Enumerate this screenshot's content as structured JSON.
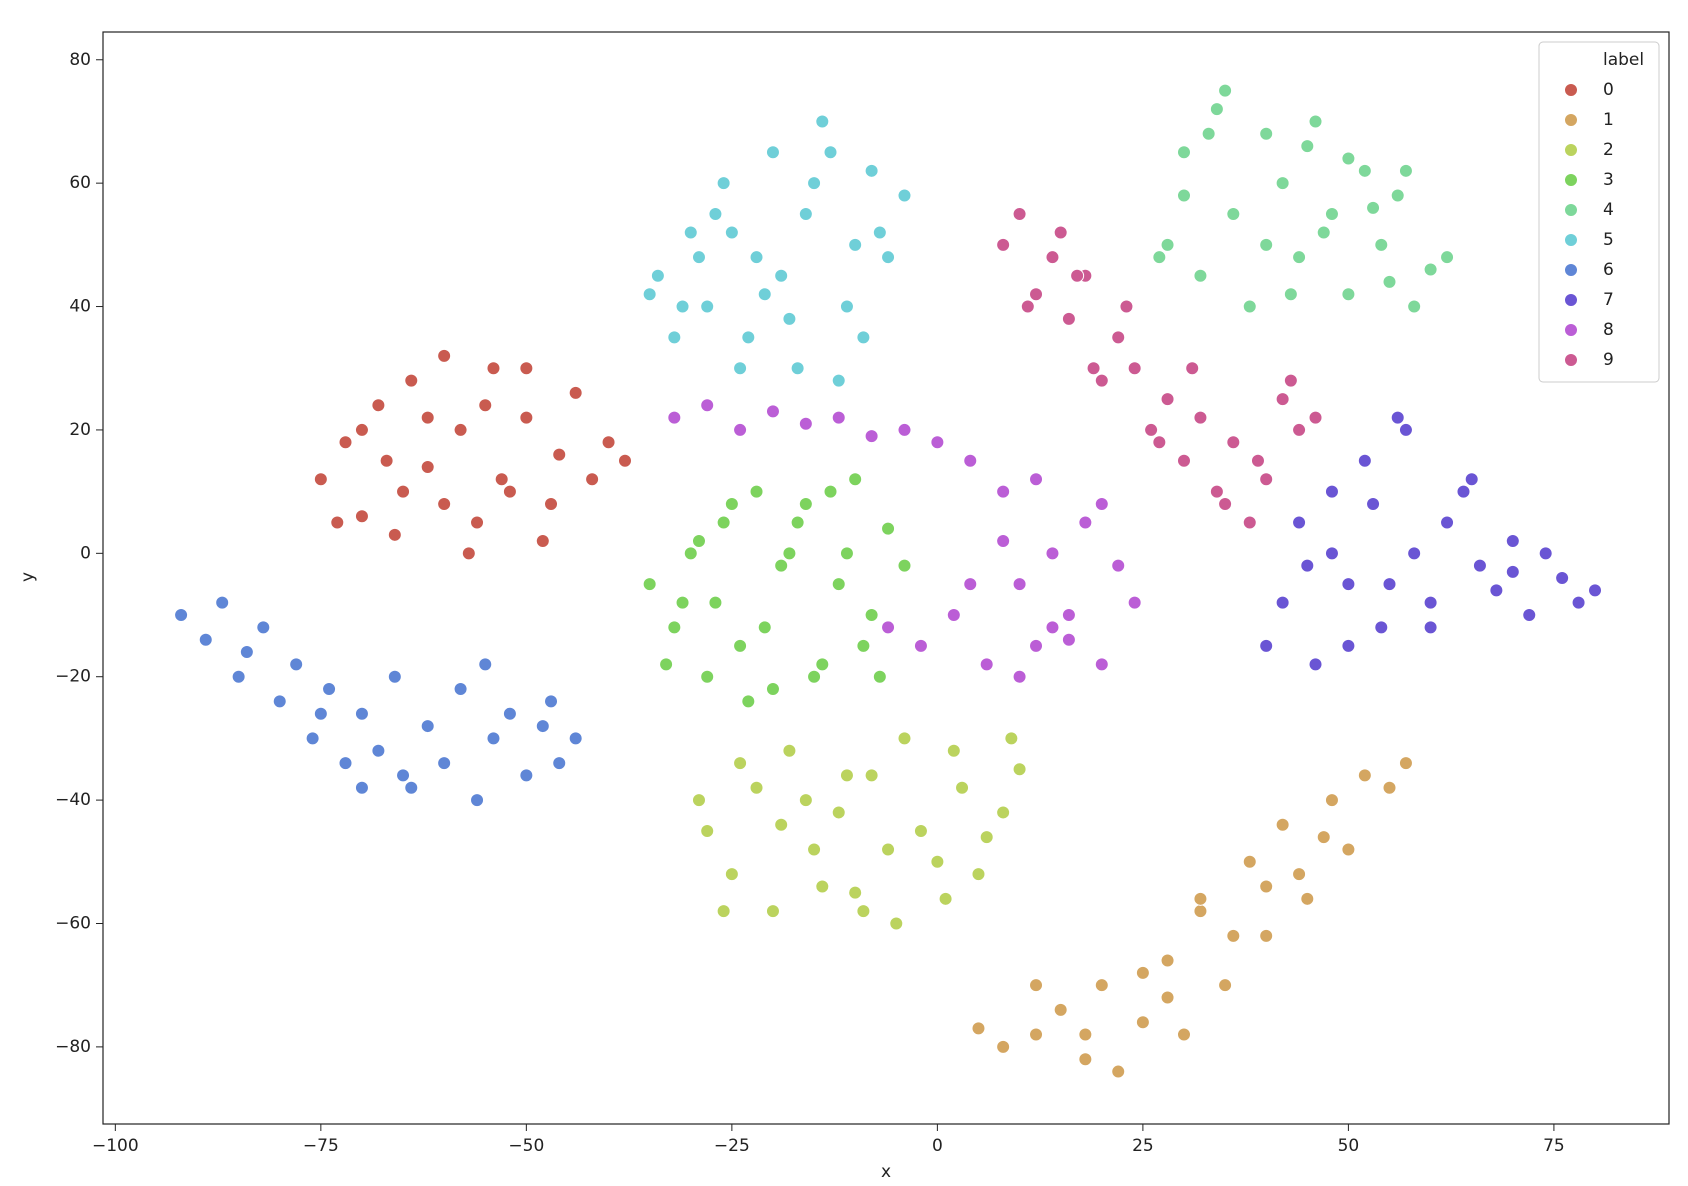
{
  "chart_data": {
    "type": "scatter",
    "xlabel": "x",
    "ylabel": "y",
    "legend_title": "label",
    "legend": "upper right",
    "grid": false,
    "xlim": [
      -101.5,
      89
    ],
    "ylim": [
      -92.5,
      84.5
    ],
    "xticks": [
      {
        "value": -100,
        "label": "−100"
      },
      {
        "value": -75,
        "label": "−75"
      },
      {
        "value": -50,
        "label": "−50"
      },
      {
        "value": -25,
        "label": "−25"
      },
      0,
      25,
      50,
      75
    ],
    "yticks": [
      {
        "value": -80,
        "label": "−80"
      },
      {
        "value": -60,
        "label": "−60"
      },
      {
        "value": -40,
        "label": "−40"
      },
      {
        "value": -20,
        "label": "−20"
      },
      0,
      20,
      40,
      60,
      80
    ],
    "series": [
      {
        "name": "0",
        "color": "#c95b50",
        "x": [
          -75,
          -72,
          -70,
          -68,
          -66,
          -64,
          -62,
          -60,
          -58,
          -56,
          -54,
          -52,
          -50,
          -48,
          -46,
          -44,
          -42,
          -40,
          -38,
          -65,
          -60,
          -55,
          -50,
          -70,
          -62,
          -57,
          -47,
          -73,
          -67,
          -53
        ],
        "values": [
          12,
          18,
          6,
          24,
          3,
          28,
          14,
          32,
          20,
          5,
          30,
          10,
          22,
          2,
          16,
          26,
          12,
          18,
          15,
          10,
          8,
          24,
          30,
          20,
          22,
          0,
          8,
          5,
          15,
          12
        ]
      },
      {
        "name": "1",
        "color": "#d4a661",
        "x": [
          5,
          8,
          12,
          15,
          18,
          20,
          22,
          25,
          28,
          30,
          32,
          35,
          38,
          40,
          42,
          45,
          48,
          50,
          52,
          55,
          57,
          18,
          25,
          32,
          40,
          47,
          28,
          36,
          44,
          12
        ],
        "values": [
          -77,
          -80,
          -78,
          -74,
          -82,
          -70,
          -84,
          -76,
          -66,
          -78,
          -58,
          -70,
          -50,
          -62,
          -44,
          -56,
          -40,
          -48,
          -36,
          -38,
          -34,
          -78,
          -68,
          -56,
          -54,
          -46,
          -72,
          -62,
          -52,
          -70
        ]
      },
      {
        "name": "2",
        "color": "#bbd35e",
        "x": [
          -28,
          -25,
          -22,
          -20,
          -18,
          -15,
          -12,
          -10,
          -8,
          -5,
          -2,
          0,
          3,
          5,
          8,
          10,
          -26,
          -16,
          -6,
          2,
          -24,
          -14,
          -4,
          6,
          -19,
          -9,
          -29,
          -11,
          1,
          9
        ],
        "values": [
          -45,
          -52,
          -38,
          -58,
          -32,
          -48,
          -42,
          -55,
          -36,
          -60,
          -45,
          -50,
          -38,
          -52,
          -42,
          -35,
          -58,
          -40,
          -48,
          -32,
          -34,
          -54,
          -30,
          -46,
          -44,
          -58,
          -40,
          -36,
          -56,
          -30
        ]
      },
      {
        "name": "3",
        "color": "#7dd35e",
        "x": [
          -35,
          -32,
          -30,
          -28,
          -26,
          -24,
          -22,
          -20,
          -18,
          -16,
          -14,
          -12,
          -10,
          -8,
          -6,
          -4,
          -33,
          -27,
          -21,
          -15,
          -9,
          -25,
          -17,
          -11,
          -29,
          -19,
          -7,
          -13,
          -23,
          -31
        ],
        "values": [
          -5,
          -12,
          0,
          -20,
          5,
          -15,
          10,
          -22,
          0,
          8,
          -18,
          -5,
          12,
          -10,
          4,
          -2,
          -18,
          -8,
          -12,
          -20,
          -15,
          8,
          5,
          0,
          2,
          -2,
          -20,
          10,
          -24,
          -8
        ]
      },
      {
        "name": "4",
        "color": "#7ed89a",
        "x": [
          28,
          30,
          32,
          34,
          36,
          38,
          40,
          42,
          44,
          46,
          48,
          50,
          52,
          54,
          56,
          58,
          60,
          62,
          30,
          35,
          40,
          45,
          50,
          55,
          33,
          43,
          53,
          27,
          47,
          57
        ],
        "values": [
          50,
          65,
          45,
          72,
          55,
          40,
          68,
          60,
          48,
          70,
          55,
          42,
          62,
          50,
          58,
          40,
          46,
          48,
          58,
          75,
          50,
          66,
          64,
          44,
          68,
          42,
          56,
          48,
          52,
          62
        ]
      },
      {
        "name": "5",
        "color": "#6fcfd8",
        "x": [
          -34,
          -32,
          -30,
          -28,
          -26,
          -24,
          -22,
          -20,
          -18,
          -16,
          -14,
          -12,
          -10,
          -8,
          -6,
          -4,
          -31,
          -27,
          -23,
          -19,
          -15,
          -11,
          -25,
          -17,
          -13,
          -29,
          -21,
          -9,
          -35,
          -7
        ],
        "values": [
          45,
          35,
          52,
          40,
          60,
          30,
          48,
          65,
          38,
          55,
          70,
          28,
          50,
          62,
          48,
          58,
          40,
          55,
          35,
          45,
          60,
          40,
          52,
          30,
          65,
          48,
          42,
          35,
          42,
          52
        ]
      },
      {
        "name": "6",
        "color": "#5f86d6",
        "x": [
          -92,
          -89,
          -87,
          -85,
          -82,
          -80,
          -78,
          -76,
          -74,
          -72,
          -70,
          -68,
          -66,
          -64,
          -62,
          -60,
          -58,
          -56,
          -54,
          -52,
          -50,
          -48,
          -46,
          -44,
          -84,
          -75,
          -65,
          -55,
          -47,
          -70
        ],
        "values": [
          -10,
          -14,
          -8,
          -20,
          -12,
          -24,
          -18,
          -30,
          -22,
          -34,
          -26,
          -32,
          -20,
          -38,
          -28,
          -34,
          -22,
          -40,
          -30,
          -26,
          -36,
          -28,
          -34,
          -30,
          -16,
          -26,
          -36,
          -18,
          -24,
          -38
        ]
      },
      {
        "name": "7",
        "color": "#6a55d4",
        "x": [
          40,
          42,
          44,
          46,
          48,
          50,
          52,
          54,
          56,
          58,
          60,
          62,
          64,
          66,
          68,
          70,
          72,
          74,
          76,
          78,
          80,
          45,
          50,
          55,
          60,
          65,
          70,
          53,
          57,
          48
        ],
        "values": [
          -15,
          -8,
          5,
          -18,
          10,
          -5,
          15,
          -12,
          22,
          0,
          -8,
          5,
          10,
          -2,
          -6,
          2,
          -10,
          0,
          -4,
          -8,
          -6,
          -2,
          -15,
          -5,
          -12,
          12,
          -3,
          8,
          20,
          0
        ]
      },
      {
        "name": "8",
        "color": "#bb5ed6",
        "x": [
          -32,
          -28,
          -24,
          -20,
          -16,
          -12,
          -8,
          -4,
          0,
          4,
          8,
          10,
          12,
          14,
          16,
          18,
          20,
          22,
          24,
          6,
          2,
          -2,
          8,
          14,
          20,
          4,
          10,
          16,
          -6,
          12
        ],
        "values": [
          22,
          24,
          20,
          23,
          21,
          22,
          19,
          20,
          18,
          15,
          10,
          -5,
          -15,
          0,
          -10,
          5,
          -18,
          -2,
          -8,
          -18,
          -10,
          -15,
          2,
          -12,
          8,
          -5,
          -20,
          -14,
          -12,
          12
        ]
      },
      {
        "name": "9",
        "color": "#cc5a92",
        "x": [
          8,
          10,
          12,
          14,
          16,
          18,
          20,
          22,
          24,
          26,
          28,
          30,
          32,
          34,
          36,
          38,
          40,
          42,
          44,
          46,
          11,
          15,
          19,
          23,
          27,
          31,
          35,
          39,
          43,
          17
        ],
        "values": [
          50,
          55,
          42,
          48,
          38,
          45,
          28,
          35,
          30,
          20,
          25,
          15,
          22,
          10,
          18,
          5,
          12,
          25,
          20,
          22,
          40,
          52,
          30,
          40,
          18,
          30,
          8,
          15,
          28,
          45
        ]
      }
    ]
  }
}
